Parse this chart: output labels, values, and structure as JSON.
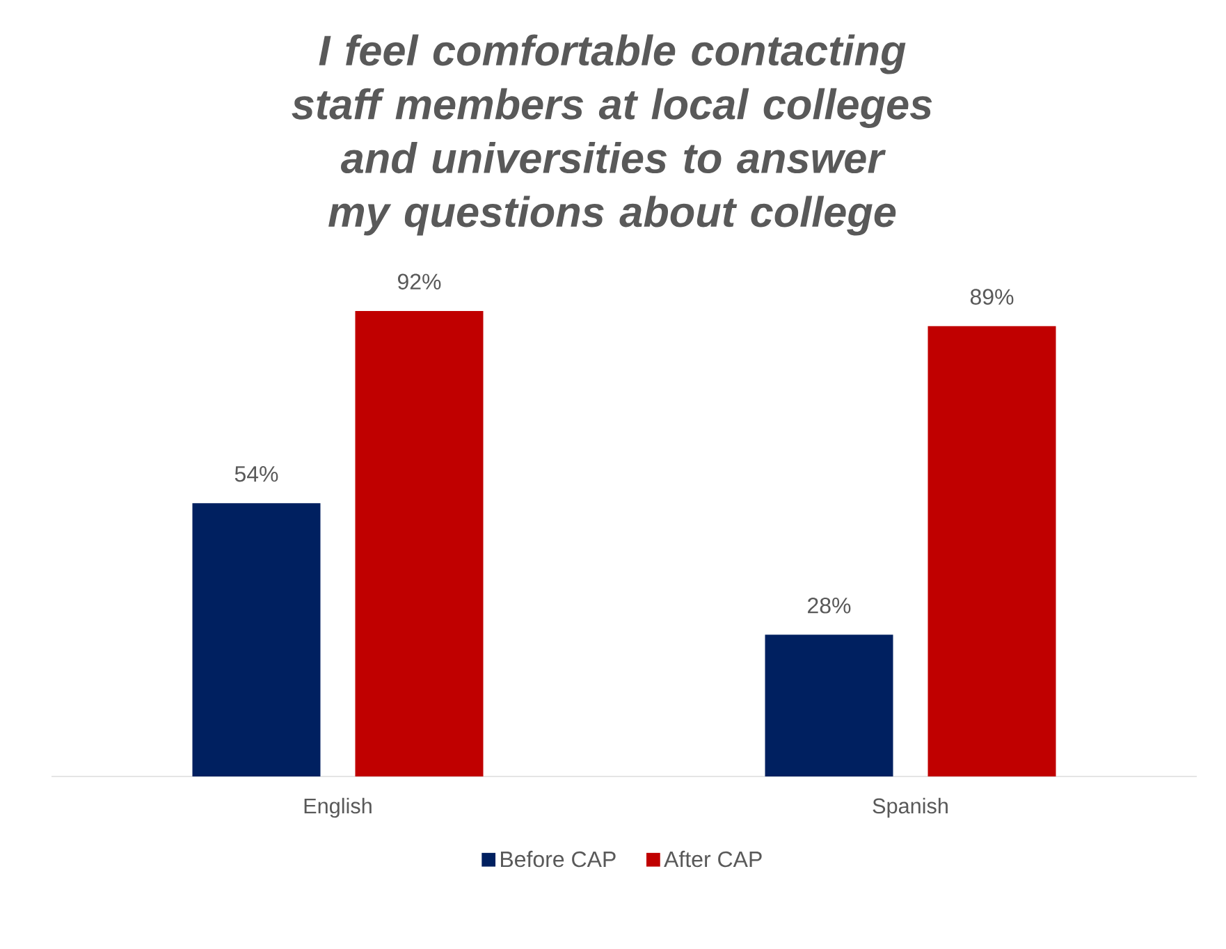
{
  "chart_data": {
    "type": "bar",
    "title": "I feel comfortable contacting staff members at local colleges and universities to answer my questions about college",
    "categories": [
      "English",
      "Spanish"
    ],
    "series": [
      {
        "name": "Before CAP",
        "color": "#002060",
        "values": [
          54,
          28
        ],
        "value_labels": [
          "54%",
          "28%"
        ]
      },
      {
        "name": "After CAP",
        "color": "#c00000",
        "values": [
          92,
          89
        ],
        "value_labels": [
          "92%",
          "89%"
        ]
      }
    ],
    "legend": "bottom",
    "tick_labels": "x"
  }
}
